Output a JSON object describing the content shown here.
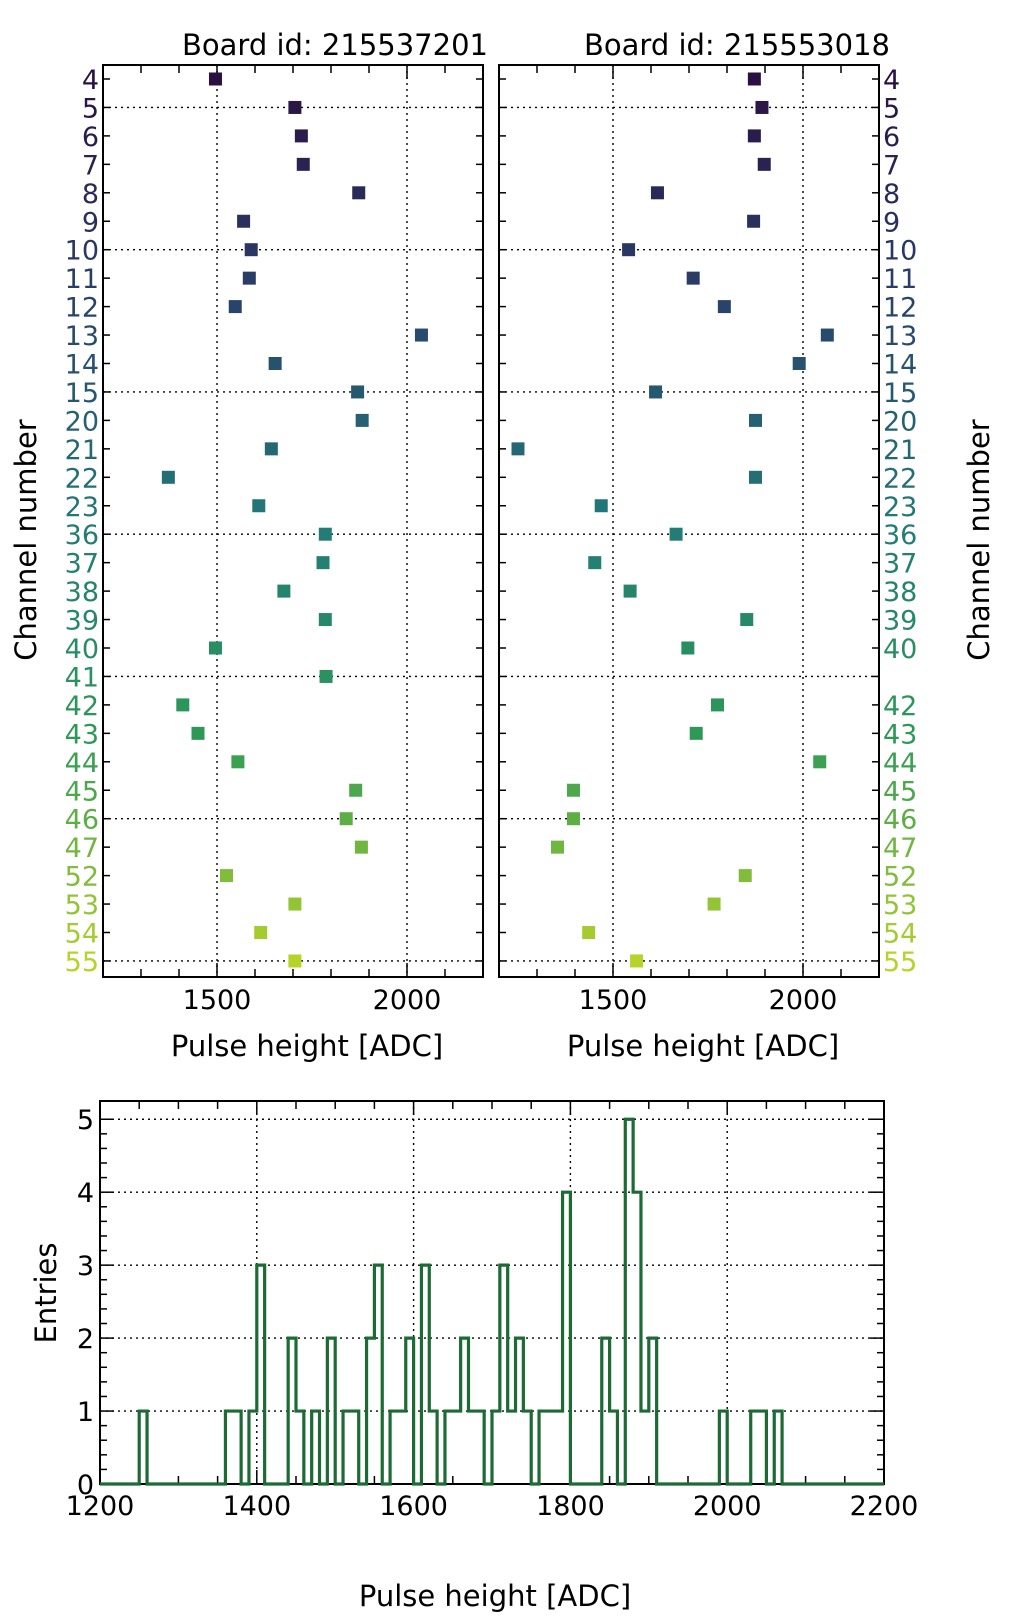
{
  "chart_data": [
    {
      "type": "scatter",
      "title": "Board id: 215537201",
      "xlabel": "Pulse height [ADC]",
      "ylabel": "Channel number",
      "xlim": [
        1200,
        2200
      ],
      "xticks": [
        1500,
        2000
      ],
      "channels": [
        4,
        5,
        6,
        7,
        8,
        9,
        10,
        11,
        12,
        13,
        14,
        15,
        20,
        21,
        22,
        23,
        36,
        37,
        38,
        39,
        40,
        41,
        42,
        43,
        44,
        45,
        46,
        47,
        52,
        53,
        54,
        55
      ],
      "channel_labels": [
        "4",
        "5",
        "6",
        "7",
        "8",
        "9",
        "10",
        "11",
        "12",
        "13",
        "14",
        "15",
        "20",
        "21",
        "22",
        "23",
        "36",
        "37",
        "38",
        "39",
        "40",
        "41",
        "42",
        "43",
        "44",
        "45",
        "46",
        "47",
        "52",
        "53",
        "54",
        "55"
      ],
      "values": [
        1496,
        1705,
        1722,
        1727,
        1873,
        1570,
        1590,
        1585,
        1548,
        2038,
        1653,
        1870,
        1882,
        1643,
        1372,
        1610,
        1785,
        1779,
        1676,
        1785,
        1496,
        1787,
        1410,
        1450,
        1555,
        1865,
        1840,
        1880,
        1525,
        1705,
        1615,
        1705
      ]
    },
    {
      "type": "scatter",
      "title": "Board id: 215553018",
      "xlabel": "Pulse height [ADC]",
      "ylabel": "Channel number",
      "xlim": [
        1200,
        2200
      ],
      "xticks": [
        1500,
        2000
      ],
      "channels": [
        4,
        5,
        6,
        7,
        8,
        9,
        10,
        11,
        12,
        13,
        14,
        15,
        20,
        21,
        22,
        23,
        36,
        37,
        38,
        39,
        40,
        42,
        43,
        44,
        45,
        46,
        47,
        52,
        53,
        54,
        55
      ],
      "channel_labels": [
        "4",
        "5",
        "6",
        "7",
        "8",
        "9",
        "10",
        "11",
        "12",
        "13",
        "14",
        "15",
        "20",
        "21",
        "22",
        "23",
        "36",
        "37",
        "38",
        "39",
        "40",
        "42",
        "43",
        "44",
        "45",
        "46",
        "47",
        "52",
        "53",
        "54",
        "55"
      ],
      "values": [
        1872,
        1892,
        1872,
        1898,
        1617,
        1870,
        1541,
        1711,
        1793,
        2064,
        1990,
        1612,
        1875,
        1250,
        1875,
        1469,
        1666,
        1452,
        1545,
        1852,
        1697,
        1775,
        1719,
        2044,
        1396,
        1396,
        1354,
        1848,
        1766,
        1436,
        1562
      ]
    },
    {
      "type": "histogram",
      "xlabel": "Pulse height [ADC]",
      "ylabel": "Entries",
      "xlim": [
        1200,
        2200
      ],
      "ylim": [
        0,
        5.25
      ],
      "xticks": [
        "1200",
        "1400",
        "1600",
        "1800",
        "2000",
        "2200"
      ],
      "yticks": [
        "0",
        "1",
        "2",
        "3",
        "4",
        "5"
      ],
      "bin_width": 10,
      "bins": [
        {
          "x": 1250,
          "count": 1
        },
        {
          "x": 1360,
          "count": 1
        },
        {
          "x": 1370,
          "count": 1
        },
        {
          "x": 1390,
          "count": 1
        },
        {
          "x": 1400,
          "count": 3
        },
        {
          "x": 1440,
          "count": 2
        },
        {
          "x": 1450,
          "count": 1
        },
        {
          "x": 1470,
          "count": 1
        },
        {
          "x": 1490,
          "count": 2
        },
        {
          "x": 1510,
          "count": 1
        },
        {
          "x": 1520,
          "count": 1
        },
        {
          "x": 1540,
          "count": 2
        },
        {
          "x": 1550,
          "count": 3
        },
        {
          "x": 1570,
          "count": 1
        },
        {
          "x": 1580,
          "count": 1
        },
        {
          "x": 1590,
          "count": 2
        },
        {
          "x": 1610,
          "count": 3
        },
        {
          "x": 1620,
          "count": 1
        },
        {
          "x": 1640,
          "count": 1
        },
        {
          "x": 1650,
          "count": 1
        },
        {
          "x": 1660,
          "count": 2
        },
        {
          "x": 1670,
          "count": 1
        },
        {
          "x": 1680,
          "count": 1
        },
        {
          "x": 1700,
          "count": 1
        },
        {
          "x": 1710,
          "count": 3
        },
        {
          "x": 1720,
          "count": 1
        },
        {
          "x": 1730,
          "count": 2
        },
        {
          "x": 1740,
          "count": 1
        },
        {
          "x": 1760,
          "count": 1
        },
        {
          "x": 1770,
          "count": 1
        },
        {
          "x": 1780,
          "count": 1
        },
        {
          "x": 1790,
          "count": 4
        },
        {
          "x": 1840,
          "count": 2
        },
        {
          "x": 1850,
          "count": 1
        },
        {
          "x": 1870,
          "count": 5
        },
        {
          "x": 1880,
          "count": 4
        },
        {
          "x": 1890,
          "count": 1
        },
        {
          "x": 1900,
          "count": 2
        },
        {
          "x": 1990,
          "count": 1
        },
        {
          "x": 2030,
          "count": 1
        },
        {
          "x": 2040,
          "count": 1
        },
        {
          "x": 2060,
          "count": 1
        }
      ]
    }
  ],
  "colors": {
    "channel_start": "#2a1042",
    "channel_mid1": "#29426b",
    "channel_mid2": "#227a78",
    "channel_mid3": "#2e9a56",
    "channel_end": "#b6d32a",
    "histogram": "#1c6b34"
  }
}
